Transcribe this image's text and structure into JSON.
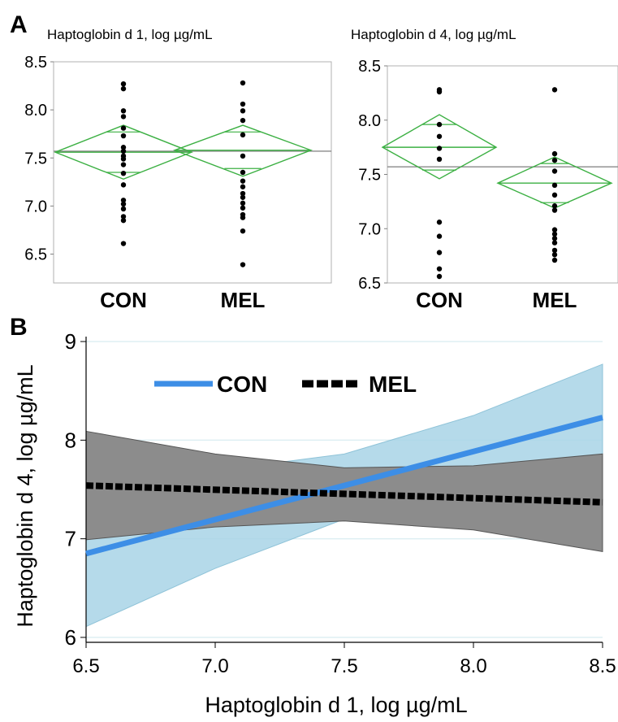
{
  "figure": {
    "panel_a_letter": "A",
    "panel_b_letter": "B"
  },
  "chart_data": [
    {
      "id": "a1",
      "type": "scatter",
      "title": "Haptoglobin d 1, log µg/mL",
      "categories": [
        "CON",
        "MEL"
      ],
      "ylim": [
        6.2,
        8.5
      ],
      "yticks": [
        "6.5",
        "7.0",
        "7.5",
        "8.0",
        "8.5"
      ],
      "grand_mean": 7.57,
      "groups": [
        {
          "name": "CON",
          "mean": 7.56,
          "ci": [
            7.28,
            7.84
          ],
          "overlap": [
            7.35,
            7.77
          ],
          "points": [
            8.27,
            8.22,
            7.99,
            7.93,
            7.81,
            7.73,
            7.61,
            7.57,
            7.52,
            7.49,
            7.43,
            7.34,
            7.22,
            7.06,
            7.02,
            6.97,
            6.89,
            6.85,
            6.61
          ]
        },
        {
          "name": "MEL",
          "mean": 7.58,
          "ci": [
            7.31,
            7.84
          ],
          "overlap": [
            7.39,
            7.77
          ],
          "points": [
            8.28,
            8.06,
            7.99,
            7.89,
            7.74,
            7.52,
            7.35,
            7.26,
            7.2,
            7.13,
            7.09,
            7.03,
            6.98,
            6.91,
            6.88,
            6.74,
            6.39
          ]
        }
      ]
    },
    {
      "id": "a4",
      "type": "scatter",
      "title": "Haptoglobin d 4, log µg/mL",
      "categories": [
        "CON",
        "MEL"
      ],
      "ylim": [
        6.5,
        8.5
      ],
      "yticks": [
        "6.5",
        "7.0",
        "7.5",
        "8.0",
        "8.5"
      ],
      "grand_mean": 7.57,
      "groups": [
        {
          "name": "CON",
          "mean": 7.75,
          "ci": [
            7.46,
            8.05
          ],
          "overlap": [
            7.54,
            7.96
          ],
          "points": [
            8.28,
            8.26,
            7.96,
            7.85,
            7.74,
            7.64,
            7.06,
            6.93,
            6.78,
            6.63,
            6.56
          ]
        },
        {
          "name": "MEL",
          "mean": 7.42,
          "ci": [
            7.19,
            7.66
          ],
          "overlap": [
            7.24,
            7.6
          ],
          "points": [
            8.28,
            7.69,
            7.63,
            7.53,
            7.4,
            7.31,
            7.21,
            7.17,
            6.99,
            6.95,
            6.91,
            6.87,
            6.8,
            6.76,
            6.71
          ]
        }
      ]
    },
    {
      "id": "b",
      "type": "line",
      "xlabel": "Haptoglobin d 1, log µg/mL",
      "ylabel": "Haptoglobin d 4, log µg/mL",
      "xlim": [
        6.5,
        8.5
      ],
      "ylim": [
        5.95,
        9.05
      ],
      "xticks": [
        "6.5",
        "7.0",
        "7.5",
        "8.0",
        "8.5"
      ],
      "yticks": [
        "6",
        "7",
        "8",
        "9"
      ],
      "legend_position": "top-left",
      "series": [
        {
          "name": "CON",
          "color": "#3d8ee6",
          "band_color": "#a8d4e6",
          "style": "solid",
          "x": [
            6.5,
            8.5
          ],
          "y": [
            6.85,
            8.23
          ],
          "band_x": [
            6.5,
            7.0,
            7.5,
            8.0,
            8.5
          ],
          "band_low": [
            6.11,
            6.7,
            7.2,
            7.58,
            7.72
          ],
          "band_high": [
            7.58,
            7.69,
            7.86,
            8.25,
            8.77
          ]
        },
        {
          "name": "MEL",
          "color": "#000000",
          "band_color": "#8c8c8c",
          "style": "dashed",
          "x": [
            6.5,
            8.5
          ],
          "y": [
            7.54,
            7.37
          ],
          "band_x": [
            6.5,
            7.0,
            7.5,
            8.0,
            8.5
          ],
          "band_low": [
            6.99,
            7.12,
            7.18,
            7.09,
            6.87
          ],
          "band_high": [
            8.09,
            7.86,
            7.72,
            7.74,
            7.86
          ]
        }
      ]
    }
  ]
}
